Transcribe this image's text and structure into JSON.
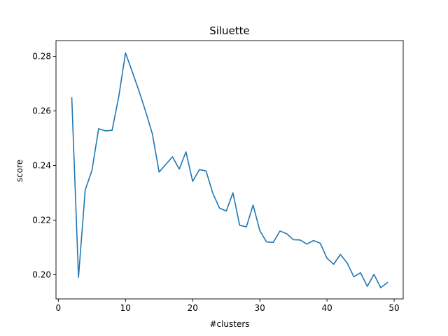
{
  "chart_data": {
    "type": "line",
    "title": "Siluette",
    "xlabel": "#clusters",
    "ylabel": "score",
    "xlim": [
      -0.35,
      51.35
    ],
    "ylim": [
      0.1911,
      0.2858
    ],
    "grid": false,
    "x_ticks": [
      0,
      10,
      20,
      30,
      40,
      50
    ],
    "y_ticks": [
      0.2,
      0.22,
      0.24,
      0.26,
      0.28
    ],
    "x_tick_labels": [
      "0",
      "10",
      "20",
      "30",
      "40",
      "50"
    ],
    "y_tick_labels": [
      "0.20",
      "0.22",
      "0.24",
      "0.26",
      "0.28"
    ],
    "series": [
      {
        "color": "#1f77b4",
        "x": [
          2,
          3,
          4,
          5,
          6,
          7,
          8,
          9,
          10,
          11,
          12,
          13,
          14,
          15,
          16,
          17,
          18,
          19,
          20,
          21,
          22,
          23,
          24,
          25,
          26,
          27,
          28,
          29,
          30,
          31,
          32,
          33,
          34,
          35,
          36,
          37,
          38,
          39,
          40,
          41,
          42,
          43,
          44,
          45,
          46,
          47,
          48,
          49
        ],
        "y": [
          0.2648,
          0.199,
          0.231,
          0.2382,
          0.2535,
          0.2527,
          0.2529,
          0.2653,
          0.2813,
          0.2744,
          0.2674,
          0.2598,
          0.2516,
          0.2376,
          0.2404,
          0.2432,
          0.2387,
          0.245,
          0.2342,
          0.2385,
          0.238,
          0.2298,
          0.2244,
          0.2233,
          0.23,
          0.2181,
          0.2175,
          0.2255,
          0.2161,
          0.212,
          0.2118,
          0.216,
          0.215,
          0.2128,
          0.2127,
          0.2112,
          0.2125,
          0.2115,
          0.206,
          0.2038,
          0.2074,
          0.2043,
          0.1992,
          0.2007,
          0.1957,
          0.2001,
          0.1952,
          0.1971
        ]
      }
    ]
  }
}
